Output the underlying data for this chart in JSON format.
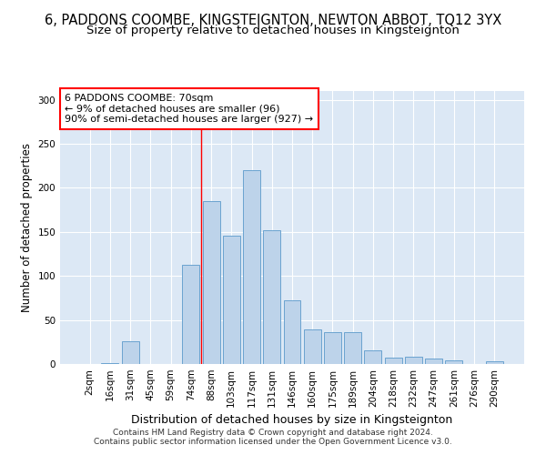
{
  "title": "6, PADDONS COOMBE, KINGSTEIGNTON, NEWTON ABBOT, TQ12 3YX",
  "subtitle": "Size of property relative to detached houses in Kingsteignton",
  "xlabel": "Distribution of detached houses by size in Kingsteignton",
  "ylabel": "Number of detached properties",
  "categories": [
    "2sqm",
    "16sqm",
    "31sqm",
    "45sqm",
    "59sqm",
    "74sqm",
    "88sqm",
    "103sqm",
    "117sqm",
    "131sqm",
    "146sqm",
    "160sqm",
    "175sqm",
    "189sqm",
    "204sqm",
    "218sqm",
    "232sqm",
    "247sqm",
    "261sqm",
    "276sqm",
    "290sqm"
  ],
  "values": [
    0,
    1,
    26,
    0,
    0,
    113,
    185,
    146,
    220,
    152,
    72,
    39,
    36,
    36,
    16,
    7,
    8,
    6,
    4,
    0,
    3
  ],
  "bar_color": "#bdd3ea",
  "bar_edge_color": "#6aa3d0",
  "red_line_x": 5.5,
  "annotation_box_text": "6 PADDONS COOMBE: 70sqm\n← 9% of detached houses are smaller (96)\n90% of semi-detached houses are larger (927) →",
  "ylim": [
    0,
    310
  ],
  "yticks": [
    0,
    50,
    100,
    150,
    200,
    250,
    300
  ],
  "axes_bg_color": "#dce8f5",
  "footer_line1": "Contains HM Land Registry data © Crown copyright and database right 2024.",
  "footer_line2": "Contains public sector information licensed under the Open Government Licence v3.0.",
  "title_fontsize": 10.5,
  "subtitle_fontsize": 9.5,
  "xlabel_fontsize": 9,
  "ylabel_fontsize": 8.5,
  "tick_fontsize": 7.5,
  "annotation_fontsize": 8,
  "footer_fontsize": 6.5
}
